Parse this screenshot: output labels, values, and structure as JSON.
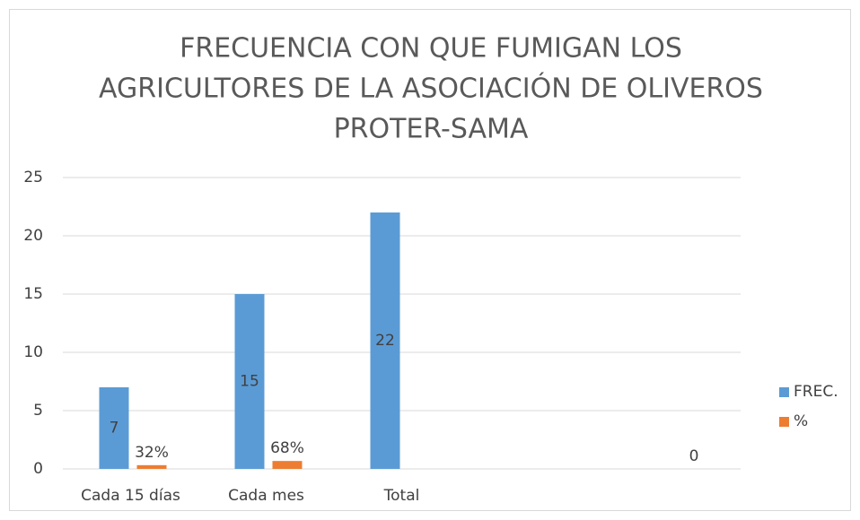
{
  "chart_data": {
    "type": "bar",
    "title": [
      "FRECUENCIA CON QUE FUMIGAN LOS",
      "AGRICULTORES DE LA ASOCIACIÓN DE OLIVEROS",
      "PROTER-SAMA"
    ],
    "categories": [
      "Cada 15 días",
      "Cada mes",
      "Total",
      null,
      null
    ],
    "series": [
      {
        "name": "FREC.",
        "color": "#5b9bd5",
        "values": [
          7,
          15,
          22,
          null,
          null
        ]
      },
      {
        "name": "%",
        "color": "#ed7d31",
        "values": [
          0.32,
          0.68,
          null,
          null,
          0
        ],
        "value_labels": [
          "32%",
          "68%",
          null,
          null,
          "0"
        ]
      }
    ],
    "ylim": [
      0,
      25
    ],
    "yticks": [
      0,
      5,
      10,
      15,
      20,
      25
    ],
    "grid": true,
    "legend": "right"
  }
}
